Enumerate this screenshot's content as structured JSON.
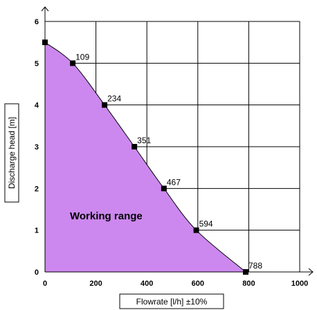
{
  "chart_data": {
    "type": "area",
    "xlabel": "Flowrate [l/h] ±10%",
    "ylabel": "Discharge head [m]",
    "xlim": [
      0,
      1000
    ],
    "ylim": [
      0,
      6
    ],
    "x_ticks": [
      0,
      200,
      400,
      600,
      800,
      1000
    ],
    "y_ticks": [
      0,
      1,
      2,
      3,
      4,
      5,
      6
    ],
    "grid": true,
    "fill_color": "#cc88ee",
    "line_color": "#000000",
    "marker_color": "#000000",
    "annotation": "Working range",
    "series": [
      {
        "x": [
          0,
          109,
          234,
          351,
          467,
          594,
          788
        ],
        "y": [
          5.5,
          5.0,
          4.0,
          3.0,
          2.0,
          1.0,
          0.0
        ],
        "point_labels": [
          "",
          "109",
          "234",
          "351",
          "467",
          "594",
          "788"
        ]
      }
    ]
  }
}
